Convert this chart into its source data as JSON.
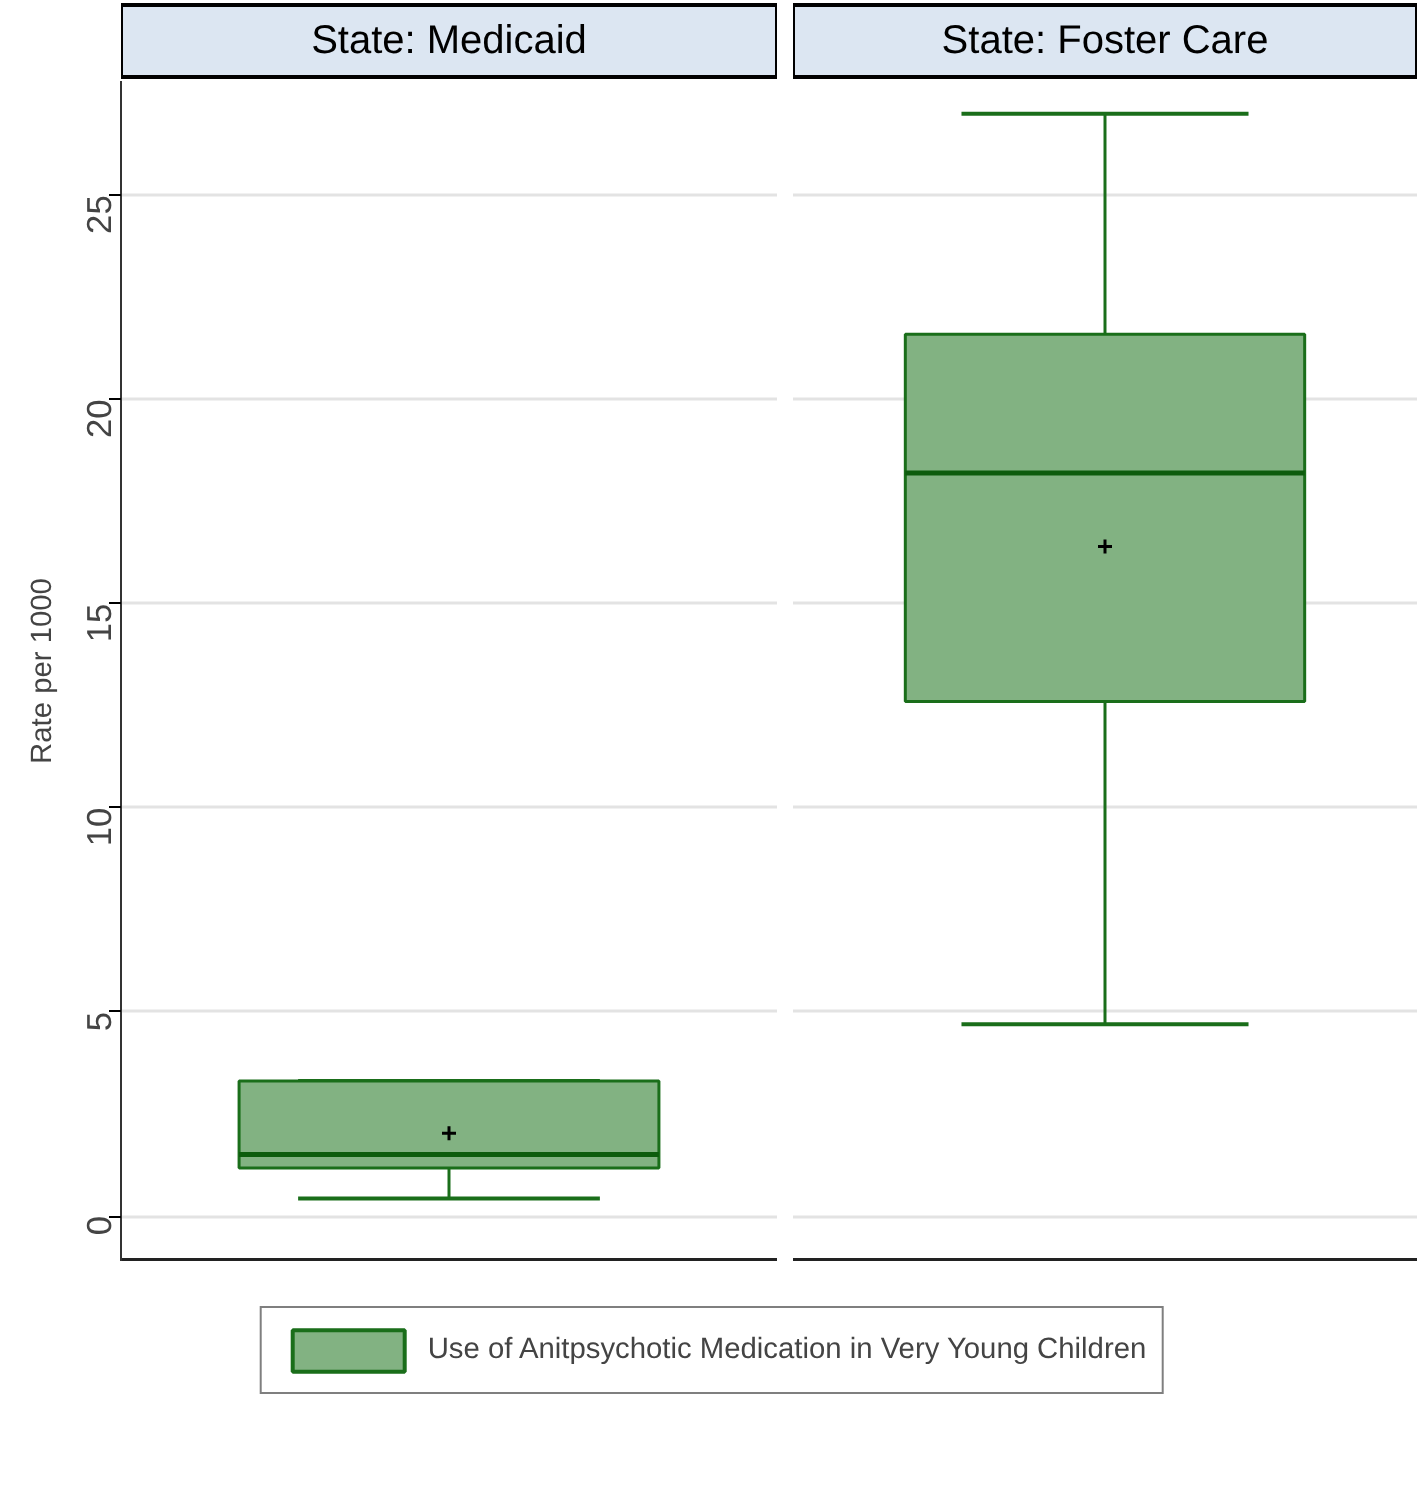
{
  "chart_data": {
    "type": "box",
    "ylabel": "Rate per 1000",
    "categories": [
      "State: Medicaid",
      "State: Foster Care"
    ],
    "series": [
      {
        "name": "Use of Anitpsychotic Medication in Very Young Children",
        "color": "#82b282",
        "boxes": [
          {
            "low": 0.43,
            "q1": 1.18,
            "median": 1.51,
            "q3": 3.31,
            "high": 3.31,
            "mean": 2.03
          },
          {
            "low": 4.7,
            "q1": 12.6,
            "median": 18.2,
            "q3": 21.6,
            "high": 27.0,
            "mean": 16.4
          }
        ]
      }
    ],
    "ylim": [
      -1.1,
      27.8
    ],
    "yticks": [
      0,
      5,
      10,
      15,
      20,
      25
    ],
    "grid": "y",
    "legend": "bottom"
  }
}
